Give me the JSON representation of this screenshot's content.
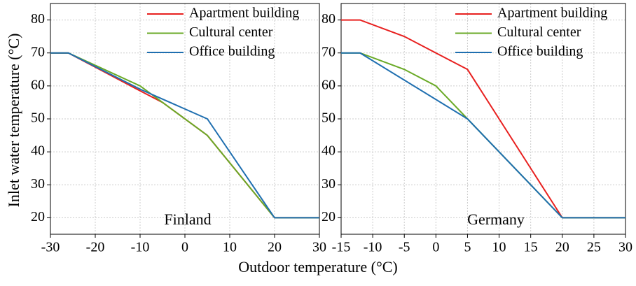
{
  "ylabel": "Inlet water temperature (°C)",
  "xlabel": "Outdoor temperature (°C)",
  "chart_data": [
    {
      "type": "line",
      "annotation": "Finland",
      "xlim": [
        -30,
        30
      ],
      "ylim": [
        15,
        85
      ],
      "xticks": [
        -30,
        -20,
        -10,
        0,
        10,
        20,
        30
      ],
      "yticks": [
        20,
        30,
        40,
        50,
        60,
        70,
        80
      ],
      "grid": true,
      "series": [
        {
          "name": "Apartment building",
          "color": "#e8201f",
          "x": [
            -30,
            -26,
            -10,
            -5,
            5,
            20,
            30
          ],
          "values": [
            70,
            70,
            58.5,
            55,
            45,
            20,
            20
          ]
        },
        {
          "name": "Cultural center",
          "color": "#6aaa27",
          "x": [
            -30,
            -26,
            -10,
            -5,
            5,
            20,
            30
          ],
          "values": [
            70,
            70,
            60,
            55,
            45,
            20,
            20
          ]
        },
        {
          "name": "Office building",
          "color": "#1f6fb0",
          "x": [
            -30,
            -26,
            -10,
            5,
            20,
            30
          ],
          "values": [
            70,
            70,
            59,
            50,
            20,
            20
          ]
        }
      ]
    },
    {
      "type": "line",
      "annotation": "Germany",
      "xlim": [
        -15,
        30
      ],
      "ylim": [
        15,
        85
      ],
      "xticks": [
        -15,
        -10,
        -5,
        0,
        5,
        10,
        15,
        20,
        25,
        30
      ],
      "yticks": [
        20,
        30,
        40,
        50,
        60,
        70,
        80
      ],
      "grid": true,
      "series": [
        {
          "name": "Apartment building",
          "color": "#e8201f",
          "x": [
            -15,
            -12,
            -5,
            0,
            5,
            20,
            30
          ],
          "values": [
            80,
            80,
            75,
            70,
            65,
            20,
            20
          ]
        },
        {
          "name": "Cultural center",
          "color": "#6aaa27",
          "x": [
            -15,
            -12,
            -5,
            0,
            5,
            20,
            30
          ],
          "values": [
            70,
            70,
            65,
            60,
            50,
            20,
            20
          ]
        },
        {
          "name": "Office building",
          "color": "#1f6fb0",
          "x": [
            -15,
            -12,
            5,
            20,
            30
          ],
          "values": [
            70,
            70,
            50,
            20,
            20
          ]
        }
      ]
    }
  ]
}
